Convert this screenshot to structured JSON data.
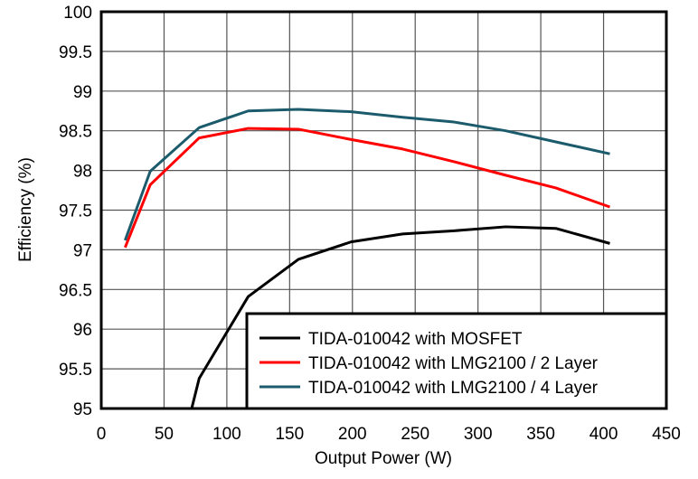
{
  "chart_data": {
    "type": "line",
    "title": "",
    "xlabel": "Output Power (W)",
    "ylabel": "Efficiency (%)",
    "xlim": [
      0,
      450
    ],
    "ylim": [
      95,
      100
    ],
    "xticks": [
      "0",
      "50",
      "100",
      "150",
      "200",
      "250",
      "300",
      "350",
      "400",
      "450"
    ],
    "yticks": [
      "95",
      "95.5",
      "96",
      "96.5",
      "97",
      "97.5",
      "98",
      "98.5",
      "99",
      "99.5",
      "100"
    ],
    "grid": true,
    "legend_position": "bottom-right",
    "series": [
      {
        "name": "TIDA-010042 with MOSFET",
        "color": "#000000",
        "x": [
          72,
          78,
          117,
          157,
          199,
          240,
          281,
          322,
          362,
          405
        ],
        "y": [
          95.0,
          95.38,
          96.41,
          96.88,
          97.1,
          97.2,
          97.24,
          97.29,
          97.27,
          97.08
        ]
      },
      {
        "name": "TIDA-010042 with LMG2100 / 2 Layer",
        "color": "#ff0000",
        "x": [
          19,
          39,
          78,
          117,
          157,
          199,
          240,
          281,
          322,
          362,
          405
        ],
        "y": [
          97.03,
          97.82,
          98.41,
          98.53,
          98.52,
          98.39,
          98.27,
          98.11,
          97.94,
          97.78,
          97.54
        ]
      },
      {
        "name": "TIDA-010042 with LMG2100 / 4 Layer",
        "color": "#1b5b6c",
        "x": [
          19,
          39,
          78,
          117,
          157,
          199,
          240,
          281,
          322,
          362,
          405
        ],
        "y": [
          97.12,
          97.99,
          98.54,
          98.75,
          98.77,
          98.74,
          98.67,
          98.61,
          98.5,
          98.36,
          98.21
        ]
      }
    ]
  }
}
